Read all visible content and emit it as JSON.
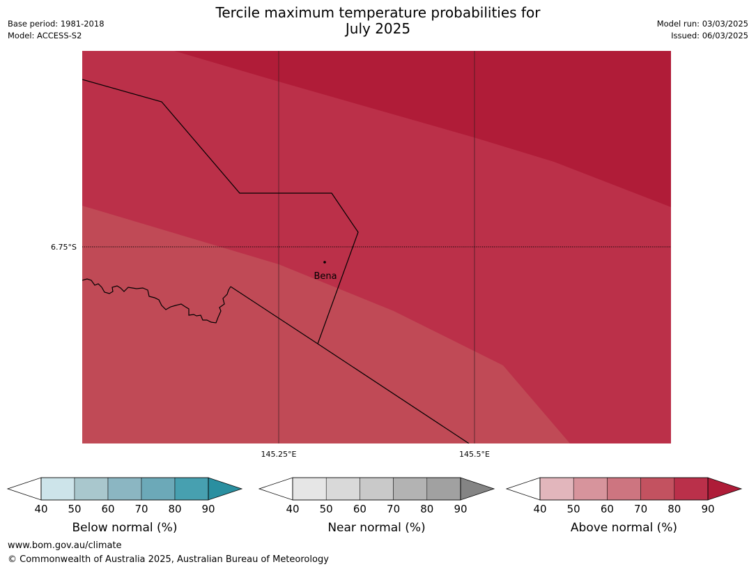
{
  "title_line1": "Tercile maximum temperature probabilities for",
  "title_line2": "July 2025",
  "meta_left": {
    "base_period": "Base period: 1981-2018",
    "model": "Model: ACCESS-S2"
  },
  "meta_right": {
    "model_run": "Model run: 03/03/2025",
    "issued": "Issued: 06/03/2025"
  },
  "map": {
    "lat_label": "6.75°S",
    "lon_labels": [
      "145.25°E",
      "145.5°E"
    ],
    "place": "Bena",
    "colors": {
      "band_high": "#b01c38",
      "band_mid": "#bb3049",
      "band_low": "#c04a56"
    }
  },
  "legends": [
    {
      "label": "Below normal (%)",
      "ticks": [
        "40",
        "50",
        "60",
        "70",
        "80",
        "90"
      ],
      "colors": [
        "#ffffff",
        "#cde4ea",
        "#a9c7cd",
        "#8bb6c2",
        "#6ca9b8",
        "#47a0b0",
        "#2a8fa0"
      ]
    },
    {
      "label": "Near normal (%)",
      "ticks": [
        "40",
        "50",
        "60",
        "70",
        "80",
        "90"
      ],
      "colors": [
        "#ffffff",
        "#e6e6e6",
        "#d9d9d9",
        "#c9c9c9",
        "#b3b3b3",
        "#a1a1a1",
        "#848484"
      ]
    },
    {
      "label": "Above normal (%)",
      "ticks": [
        "40",
        "50",
        "60",
        "70",
        "80",
        "90"
      ],
      "colors": [
        "#ffffff",
        "#e2b6bc",
        "#d7949c",
        "#cd7580",
        "#c35260",
        "#ba304a",
        "#ae1c38"
      ]
    }
  ],
  "footer": {
    "url": "www.bom.gov.au/climate",
    "copyright": "© Commonwealth of Australia 2025, Australian Bureau of Meteorology"
  }
}
